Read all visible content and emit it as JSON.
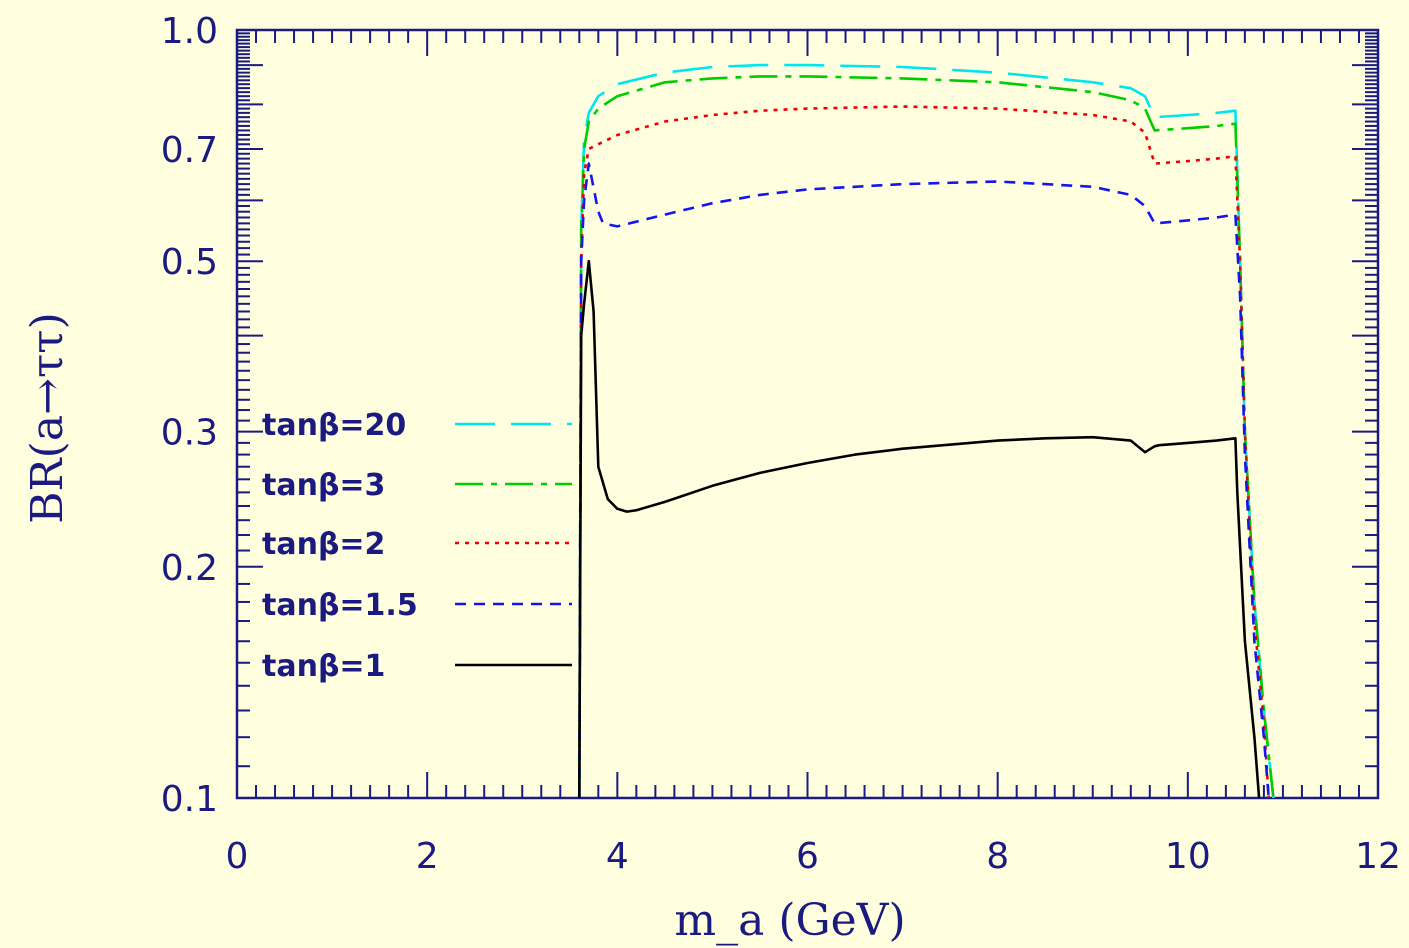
{
  "chart_data": {
    "type": "line",
    "xlabel": "m_a (GeV)",
    "ylabel": "BR(a→ττ)",
    "xlim": [
      0,
      12
    ],
    "ylim": [
      0.1,
      1.0
    ],
    "yscale": "log",
    "xticks": [
      "0",
      "2",
      "4",
      "6",
      "8",
      "10",
      "12"
    ],
    "yticks": [
      {
        "v": 0.1,
        "label": "0.1"
      },
      {
        "v": 0.2,
        "label": "0.2"
      },
      {
        "v": 0.3,
        "label": "0.3"
      },
      {
        "v": 0.5,
        "label": "0.5"
      },
      {
        "v": 0.7,
        "label": "0.7"
      },
      {
        "v": 1.0,
        "label": "1.0"
      }
    ],
    "grid": false,
    "legend_position": "left",
    "series": [
      {
        "name": "tanβ=20",
        "color": "#00e5ee",
        "dash": "dashed-long",
        "x": [
          3.6,
          3.62,
          3.65,
          3.7,
          3.8,
          4.0,
          4.5,
          5.0,
          5.5,
          6.0,
          7.0,
          8.0,
          9.0,
          9.4,
          9.55,
          9.65,
          10.0,
          10.3,
          10.5,
          10.55,
          10.6,
          10.7,
          10.8,
          10.9
        ],
        "y": [
          0.1,
          0.55,
          0.72,
          0.78,
          0.82,
          0.85,
          0.88,
          0.895,
          0.9,
          0.9,
          0.895,
          0.88,
          0.855,
          0.84,
          0.82,
          0.77,
          0.775,
          0.78,
          0.785,
          0.5,
          0.3,
          0.18,
          0.13,
          0.1
        ]
      },
      {
        "name": "tanβ=3",
        "color": "#00cc00",
        "dash": "dash-dot-long",
        "x": [
          3.6,
          3.62,
          3.65,
          3.7,
          3.8,
          4.0,
          4.5,
          5.0,
          5.5,
          6.0,
          7.0,
          8.0,
          9.0,
          9.4,
          9.55,
          9.65,
          10.0,
          10.3,
          10.5,
          10.55,
          10.6,
          10.7,
          10.8,
          10.9
        ],
        "y": [
          0.1,
          0.55,
          0.7,
          0.76,
          0.79,
          0.82,
          0.855,
          0.865,
          0.87,
          0.87,
          0.865,
          0.855,
          0.83,
          0.81,
          0.79,
          0.74,
          0.745,
          0.75,
          0.755,
          0.5,
          0.3,
          0.18,
          0.13,
          0.1
        ]
      },
      {
        "name": "tanβ=2",
        "color": "#ee0000",
        "dash": "dotted",
        "x": [
          3.6,
          3.62,
          3.65,
          3.7,
          3.8,
          4.0,
          4.5,
          5.0,
          5.5,
          6.0,
          7.0,
          8.0,
          9.0,
          9.4,
          9.55,
          9.65,
          10.0,
          10.3,
          10.5,
          10.55,
          10.6,
          10.7,
          10.8,
          10.85
        ],
        "y": [
          0.1,
          0.5,
          0.65,
          0.7,
          0.71,
          0.73,
          0.76,
          0.775,
          0.785,
          0.79,
          0.795,
          0.79,
          0.775,
          0.76,
          0.735,
          0.67,
          0.675,
          0.68,
          0.685,
          0.5,
          0.3,
          0.17,
          0.125,
          0.1
        ]
      },
      {
        "name": "tanβ=1.5",
        "color": "#1515ee",
        "dash": "dashed-short",
        "x": [
          3.6,
          3.62,
          3.65,
          3.7,
          3.8,
          3.85,
          4.0,
          4.5,
          5.0,
          5.5,
          6.0,
          7.0,
          8.0,
          9.0,
          9.4,
          9.55,
          9.65,
          10.0,
          10.3,
          10.5,
          10.55,
          10.6,
          10.7,
          10.8,
          10.85
        ],
        "y": [
          0.1,
          0.5,
          0.6,
          0.67,
          0.58,
          0.56,
          0.555,
          0.575,
          0.595,
          0.61,
          0.62,
          0.63,
          0.635,
          0.625,
          0.61,
          0.59,
          0.56,
          0.565,
          0.57,
          0.575,
          0.45,
          0.28,
          0.16,
          0.12,
          0.1
        ]
      },
      {
        "name": "tanβ=1",
        "color": "#000000",
        "dash": "solid",
        "x": [
          3.6,
          3.62,
          3.65,
          3.7,
          3.75,
          3.8,
          3.9,
          4.0,
          4.1,
          4.2,
          4.5,
          5.0,
          5.5,
          6.0,
          6.5,
          7.0,
          8.0,
          8.5,
          9.0,
          9.4,
          9.55,
          9.65,
          9.7,
          10.0,
          10.3,
          10.5,
          10.52,
          10.6,
          10.7,
          10.75
        ],
        "y": [
          0.1,
          0.4,
          0.44,
          0.5,
          0.43,
          0.27,
          0.245,
          0.238,
          0.236,
          0.237,
          0.243,
          0.255,
          0.265,
          0.273,
          0.28,
          0.285,
          0.292,
          0.294,
          0.295,
          0.292,
          0.282,
          0.287,
          0.288,
          0.29,
          0.292,
          0.294,
          0.25,
          0.16,
          0.12,
          0.1
        ]
      }
    ]
  },
  "legend": [
    {
      "label": "tanβ=20"
    },
    {
      "label": "tanβ=3"
    },
    {
      "label": "tanβ=2"
    },
    {
      "label": "tanβ=1.5"
    },
    {
      "label": "tanβ=1"
    }
  ],
  "colors": {
    "background": "#ffffe0",
    "axis": "#1a1a80",
    "legend_text": "#1a1a80"
  }
}
